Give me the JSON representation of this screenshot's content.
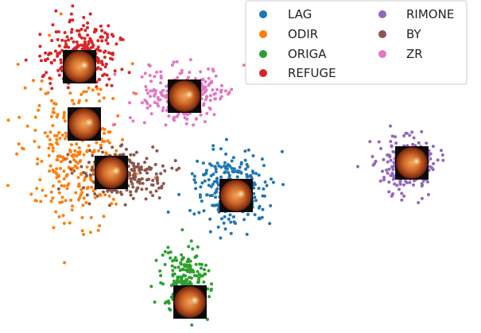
{
  "chart_data": {
    "type": "scatter",
    "title": "",
    "xlabel": "",
    "ylabel": "",
    "axes_visible": false,
    "grid": false,
    "legend_position": "top-right",
    "legend_columns": 2,
    "series": [
      {
        "name": "LAG",
        "color": "#1f77b4",
        "center": [
          292,
          239
        ],
        "spread": [
          42,
          44
        ],
        "count": 260
      },
      {
        "name": "ODIR",
        "color": "#ff7f0e",
        "center": [
          95,
          190
        ],
        "spread": [
          58,
          78
        ],
        "count": 300
      },
      {
        "name": "ORIGA",
        "color": "#2ca02c",
        "center": [
          232,
          355
        ],
        "spread": [
          26,
          42
        ],
        "count": 220
      },
      {
        "name": "REFUGE",
        "color": "#d62728",
        "center": [
          102,
          68
        ],
        "spread": [
          42,
          35
        ],
        "count": 280
      },
      {
        "name": "RIMONE",
        "color": "#9467bd",
        "center": [
          512,
          207
        ],
        "spread": [
          30,
          30
        ],
        "count": 240
      },
      {
        "name": "BY",
        "color": "#8c564b",
        "center": [
          150,
          218
        ],
        "spread": [
          46,
          28
        ],
        "count": 260
      },
      {
        "name": "ZR",
        "color": "#e377c2",
        "center": [
          232,
          120
        ],
        "spread": [
          48,
          32
        ],
        "count": 260
      }
    ],
    "thumbnails": [
      {
        "series": "REFUGE",
        "center": [
          100,
          84
        ]
      },
      {
        "series": "ZR",
        "center": [
          232,
          121
        ]
      },
      {
        "series": "ODIR",
        "center": [
          106,
          156
        ]
      },
      {
        "series": "BY",
        "center": [
          140,
          217
        ]
      },
      {
        "series": "LAG",
        "center": [
          297,
          246
        ]
      },
      {
        "series": "ORIGA",
        "center": [
          239,
          380
        ]
      },
      {
        "series": "RIMONE",
        "center": [
          518,
          205
        ]
      }
    ]
  }
}
